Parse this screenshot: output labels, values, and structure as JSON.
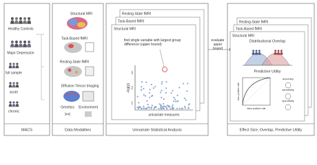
{
  "macs": {
    "footer": "MACS",
    "healthy": "Healthy Controls",
    "depression": "Major Depression",
    "full": "full sample",
    "acute": "acute",
    "chronic": "chronic"
  },
  "modalities": {
    "footer": "Data Modalities",
    "items": [
      "Structural MRI",
      "Task-Based fMRI",
      "Resting-State fMRI",
      "Diffusion Tensor Imaging"
    ],
    "genetics": "Genetics",
    "environment": "Environment"
  },
  "univariate": {
    "footer": "Univariate Statistical Analysis",
    "cards": [
      "Resting-State fMRI",
      "Task-Based fMRI",
      "Structural MRI"
    ],
    "note": "find single variable with largest group difference (upper bound)",
    "y_label": "-log(p)",
    "x_label": "univariate measures",
    "yticks": [
      "1",
      "2",
      "3"
    ]
  },
  "arrow_text": "evaluate upper bound",
  "effect": {
    "footer": "Effect Size, Overlap, Predictive Utility",
    "cards": [
      "Resting-State fMRI",
      "Task-Based fMRI",
      "Structural MRI"
    ],
    "overlap": "Distributional Overlap",
    "utility": "Predictive Utility",
    "metrics": [
      "accuracy",
      "sensitivity",
      "specificity"
    ],
    "tpr": "true positive rate",
    "fpr": "false positive rate"
  }
}
